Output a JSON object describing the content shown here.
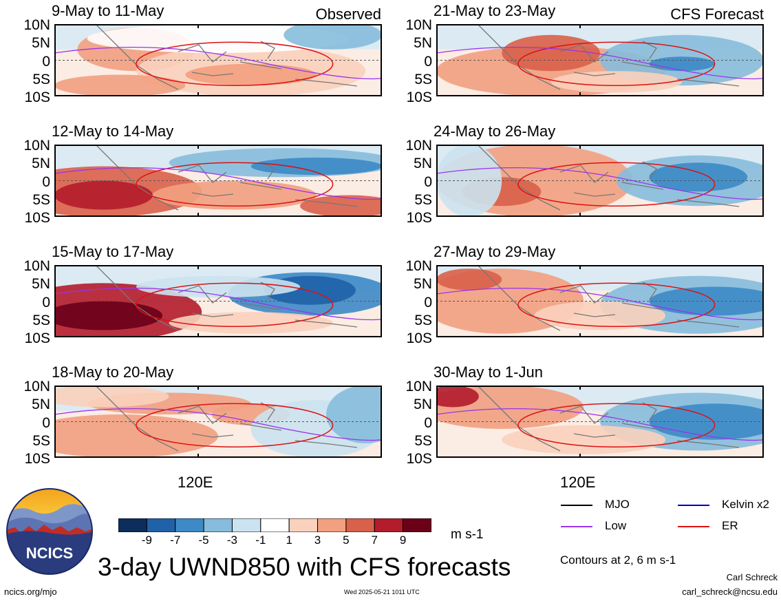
{
  "panel_tags": {
    "observed": "Observed",
    "forecast": "CFS Forecast"
  },
  "lat_labels": [
    "10N",
    "5N",
    "0",
    "5S",
    "10S"
  ],
  "lon_label": "120E",
  "panels": [
    {
      "title": "9-May to 11-May"
    },
    {
      "title": "12-May to 14-May"
    },
    {
      "title": "15-May to 17-May"
    },
    {
      "title": "18-May to 20-May"
    },
    {
      "title": "21-May to 23-May"
    },
    {
      "title": "24-May to 26-May"
    },
    {
      "title": "27-May to 29-May"
    },
    {
      "title": "30-May to 1-Jun"
    }
  ],
  "colorbar": {
    "labels": [
      "-9",
      "-7",
      "-5",
      "-3",
      "-1",
      "1",
      "3",
      "5",
      "7",
      "9"
    ],
    "colors": [
      "#0d2e5c",
      "#1f62a8",
      "#3d8ac6",
      "#86bcdc",
      "#cbe3f0",
      "#ffffff",
      "#fad1bd",
      "#f2a07f",
      "#d9604a",
      "#b31c2b",
      "#6b0019"
    ],
    "units": "m s-1"
  },
  "legend": [
    {
      "name": "MJO",
      "color": "#000000"
    },
    {
      "name": "Kelvin x2",
      "color": "#0000cc"
    },
    {
      "name": "Low",
      "color": "#9933ee"
    },
    {
      "name": "ER",
      "color": "#dd1111"
    }
  ],
  "contour_note": "Contours at 2, 6 m s-1",
  "logo_text": "NCICS",
  "main_title": "3-day UWND850 with CFS forecasts",
  "footer": {
    "website": "ncics.org/mjo",
    "timestamp": "Wed 2025-05-21 1011 UTC",
    "author": "Carl Schreck",
    "email": "carl_schreck@ncsu.edu"
  }
}
